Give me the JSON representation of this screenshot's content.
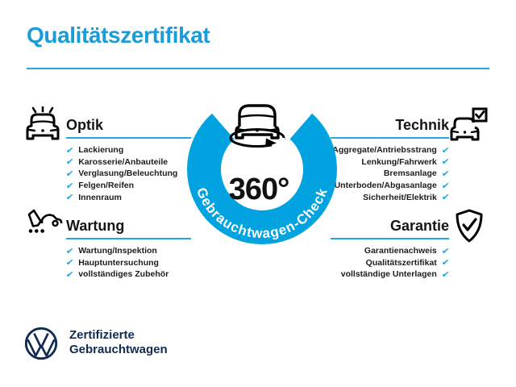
{
  "header": {
    "title": "Qualitätszertifikat"
  },
  "colors": {
    "title_blue": "#1b9cd8",
    "line_cyan": "#27a6db",
    "ring_blue": "#00a3e0",
    "check_cyan": "#16a0dc",
    "navy": "#102a54",
    "text_black": "#1d1d1b"
  },
  "center_badge": {
    "degrees": "360°",
    "ring_text": "Gebrauchtwagen-Check",
    "car_icon": "car-rotate-icon"
  },
  "sections": [
    {
      "title": "Optik",
      "side": "left",
      "icon": "car-shine-icon",
      "items": [
        "Lackierung",
        "Karosserie/Anbauteile",
        "Verglasung/Beleuchtung",
        "Felgen/Reifen",
        "Innenraum"
      ]
    },
    {
      "title": "Technik",
      "side": "right",
      "icon": "car-checkbox-icon",
      "items": [
        "Aggregate/Antriebsstrang",
        "Lenkung/Fahrwerk",
        "Bremsanlage",
        "Unterboden/Abgasanlage",
        "Sicherheit/Elektrik"
      ]
    },
    {
      "title": "Wartung",
      "side": "left",
      "icon": "pen-checklist-car-icon",
      "items": [
        "Wartung/Inspektion",
        "Hauptuntersuchung",
        "vollständiges Zubehör"
      ]
    },
    {
      "title": "Garantie",
      "side": "right",
      "icon": "shield-check-icon",
      "items": [
        "Garantienachweis",
        "Qualitätszertifikat",
        "vollständige Unterlagen"
      ]
    }
  ],
  "icons": {
    "check_glyph": "✔"
  },
  "footer": {
    "logo": "vw-logo",
    "brand_line1": "Zertifizierte",
    "brand_line2": "Gebrauchtwagen"
  }
}
